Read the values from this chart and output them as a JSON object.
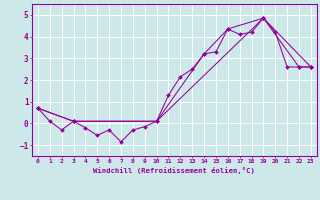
{
  "xlabel": "Windchill (Refroidissement éolien,°C)",
  "bg_color": "#cce8e8",
  "line_color": "#990099",
  "grid_color": "#ffffff",
  "xlim": [
    -0.5,
    23.5
  ],
  "ylim": [
    -1.5,
    5.5
  ],
  "yticks": [
    -1,
    0,
    1,
    2,
    3,
    4,
    5
  ],
  "xticks": [
    0,
    1,
    2,
    3,
    4,
    5,
    6,
    7,
    8,
    9,
    10,
    11,
    12,
    13,
    14,
    15,
    16,
    17,
    18,
    19,
    20,
    21,
    22,
    23
  ],
  "series1_x": [
    0,
    1,
    2,
    3,
    4,
    5,
    6,
    7,
    8,
    9,
    10,
    11,
    12,
    13,
    14,
    15,
    16,
    17,
    18,
    19,
    20,
    21,
    22,
    23
  ],
  "series1_y": [
    0.7,
    0.1,
    -0.3,
    0.1,
    -0.2,
    -0.55,
    -0.3,
    -0.85,
    -0.3,
    -0.15,
    0.1,
    1.3,
    2.15,
    2.5,
    3.2,
    3.3,
    4.35,
    4.1,
    4.2,
    4.85,
    4.2,
    2.6,
    2.6,
    2.6
  ],
  "series2_x": [
    0,
    3,
    10,
    14,
    16,
    19,
    22,
    23
  ],
  "series2_y": [
    0.7,
    0.1,
    0.1,
    3.2,
    4.35,
    4.85,
    2.6,
    2.6
  ],
  "series3_x": [
    0,
    3,
    10,
    19,
    23
  ],
  "series3_y": [
    0.7,
    0.1,
    0.1,
    4.85,
    2.6
  ]
}
